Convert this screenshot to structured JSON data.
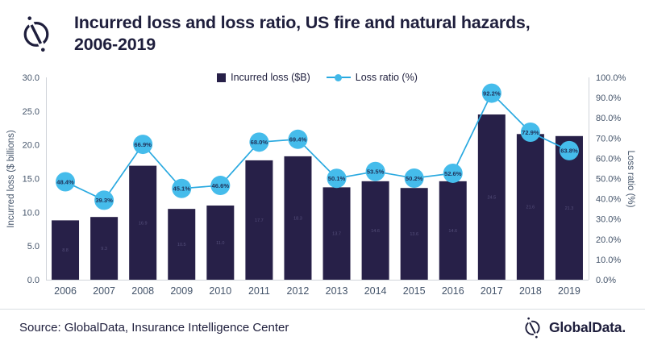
{
  "header": {
    "title_lines": [
      "Incurred loss and loss ratio, US fire and natural hazards,",
      "2006-2019"
    ]
  },
  "legend": {
    "incurred_loss_label": "Incurred loss ($B)",
    "loss_ratio_label": "Loss ratio (%)"
  },
  "chart_data": {
    "type": "combo bar+line",
    "categories": [
      "2006",
      "2007",
      "2008",
      "2009",
      "2010",
      "2011",
      "2012",
      "2013",
      "2014",
      "2015",
      "2016",
      "2017",
      "2018",
      "2019"
    ],
    "series": [
      {
        "name": "Incurred loss ($B)",
        "type": "bar",
        "axis": "left",
        "color": "#272048",
        "values": [
          8.8,
          9.3,
          16.9,
          10.5,
          11.0,
          17.7,
          18.3,
          13.7,
          14.6,
          13.6,
          14.6,
          24.5,
          21.6,
          21.3
        ],
        "labels": [
          "8.8",
          "9.3",
          "16.9",
          "10.5",
          "11.0",
          "17.7",
          "18.3",
          "13.7",
          "14.6",
          "13.6",
          "14.6",
          "24.5",
          "21.6",
          "21.3"
        ]
      },
      {
        "name": "Loss ratio (%)",
        "type": "line",
        "axis": "right",
        "line_color": "#29a9e0",
        "marker_color": "#45bceb",
        "label_color": "#1f3058",
        "values": [
          48.4,
          39.3,
          66.9,
          45.1,
          46.6,
          68.0,
          69.4,
          50.1,
          53.5,
          50.2,
          52.6,
          92.2,
          72.9,
          63.8
        ],
        "labels": [
          "48.4%",
          "39.3%",
          "66.9%",
          "45.1%",
          "46.6%",
          "68.0%",
          "69.4%",
          "50.1%",
          "53.5%",
          "50.2%",
          "52.6%",
          "92.2%",
          "72.9%",
          "63.8%"
        ]
      }
    ],
    "left_axis": {
      "title": "Incurred loss ($ billions)",
      "min": 0,
      "max": 30,
      "ticks": [
        "30.0",
        "25.0",
        "20.0",
        "15.0",
        "10.0",
        "5.0",
        "0.0"
      ]
    },
    "right_axis": {
      "title": "Loss ratio (%)",
      "min": 0,
      "max": 100,
      "ticks": [
        "100.0%",
        "90.0%",
        "80.0%",
        "70.0%",
        "60.0%",
        "50.0%",
        "40.0%",
        "30.0%",
        "20.0%",
        "10.0%",
        "0.0%"
      ]
    },
    "grid": false,
    "legend_position": "top"
  },
  "footer": {
    "source": "Source: GlobalData, Insurance Intelligence Center",
    "brand": "GlobalData."
  },
  "colors": {
    "title_text": "#1e1e3c",
    "bar": "#272048",
    "line": "#29a9e0",
    "marker": "#45bceb",
    "marker_label": "#1f3058",
    "axis_text": "#44546a",
    "axis_line": "#d0d4da"
  }
}
